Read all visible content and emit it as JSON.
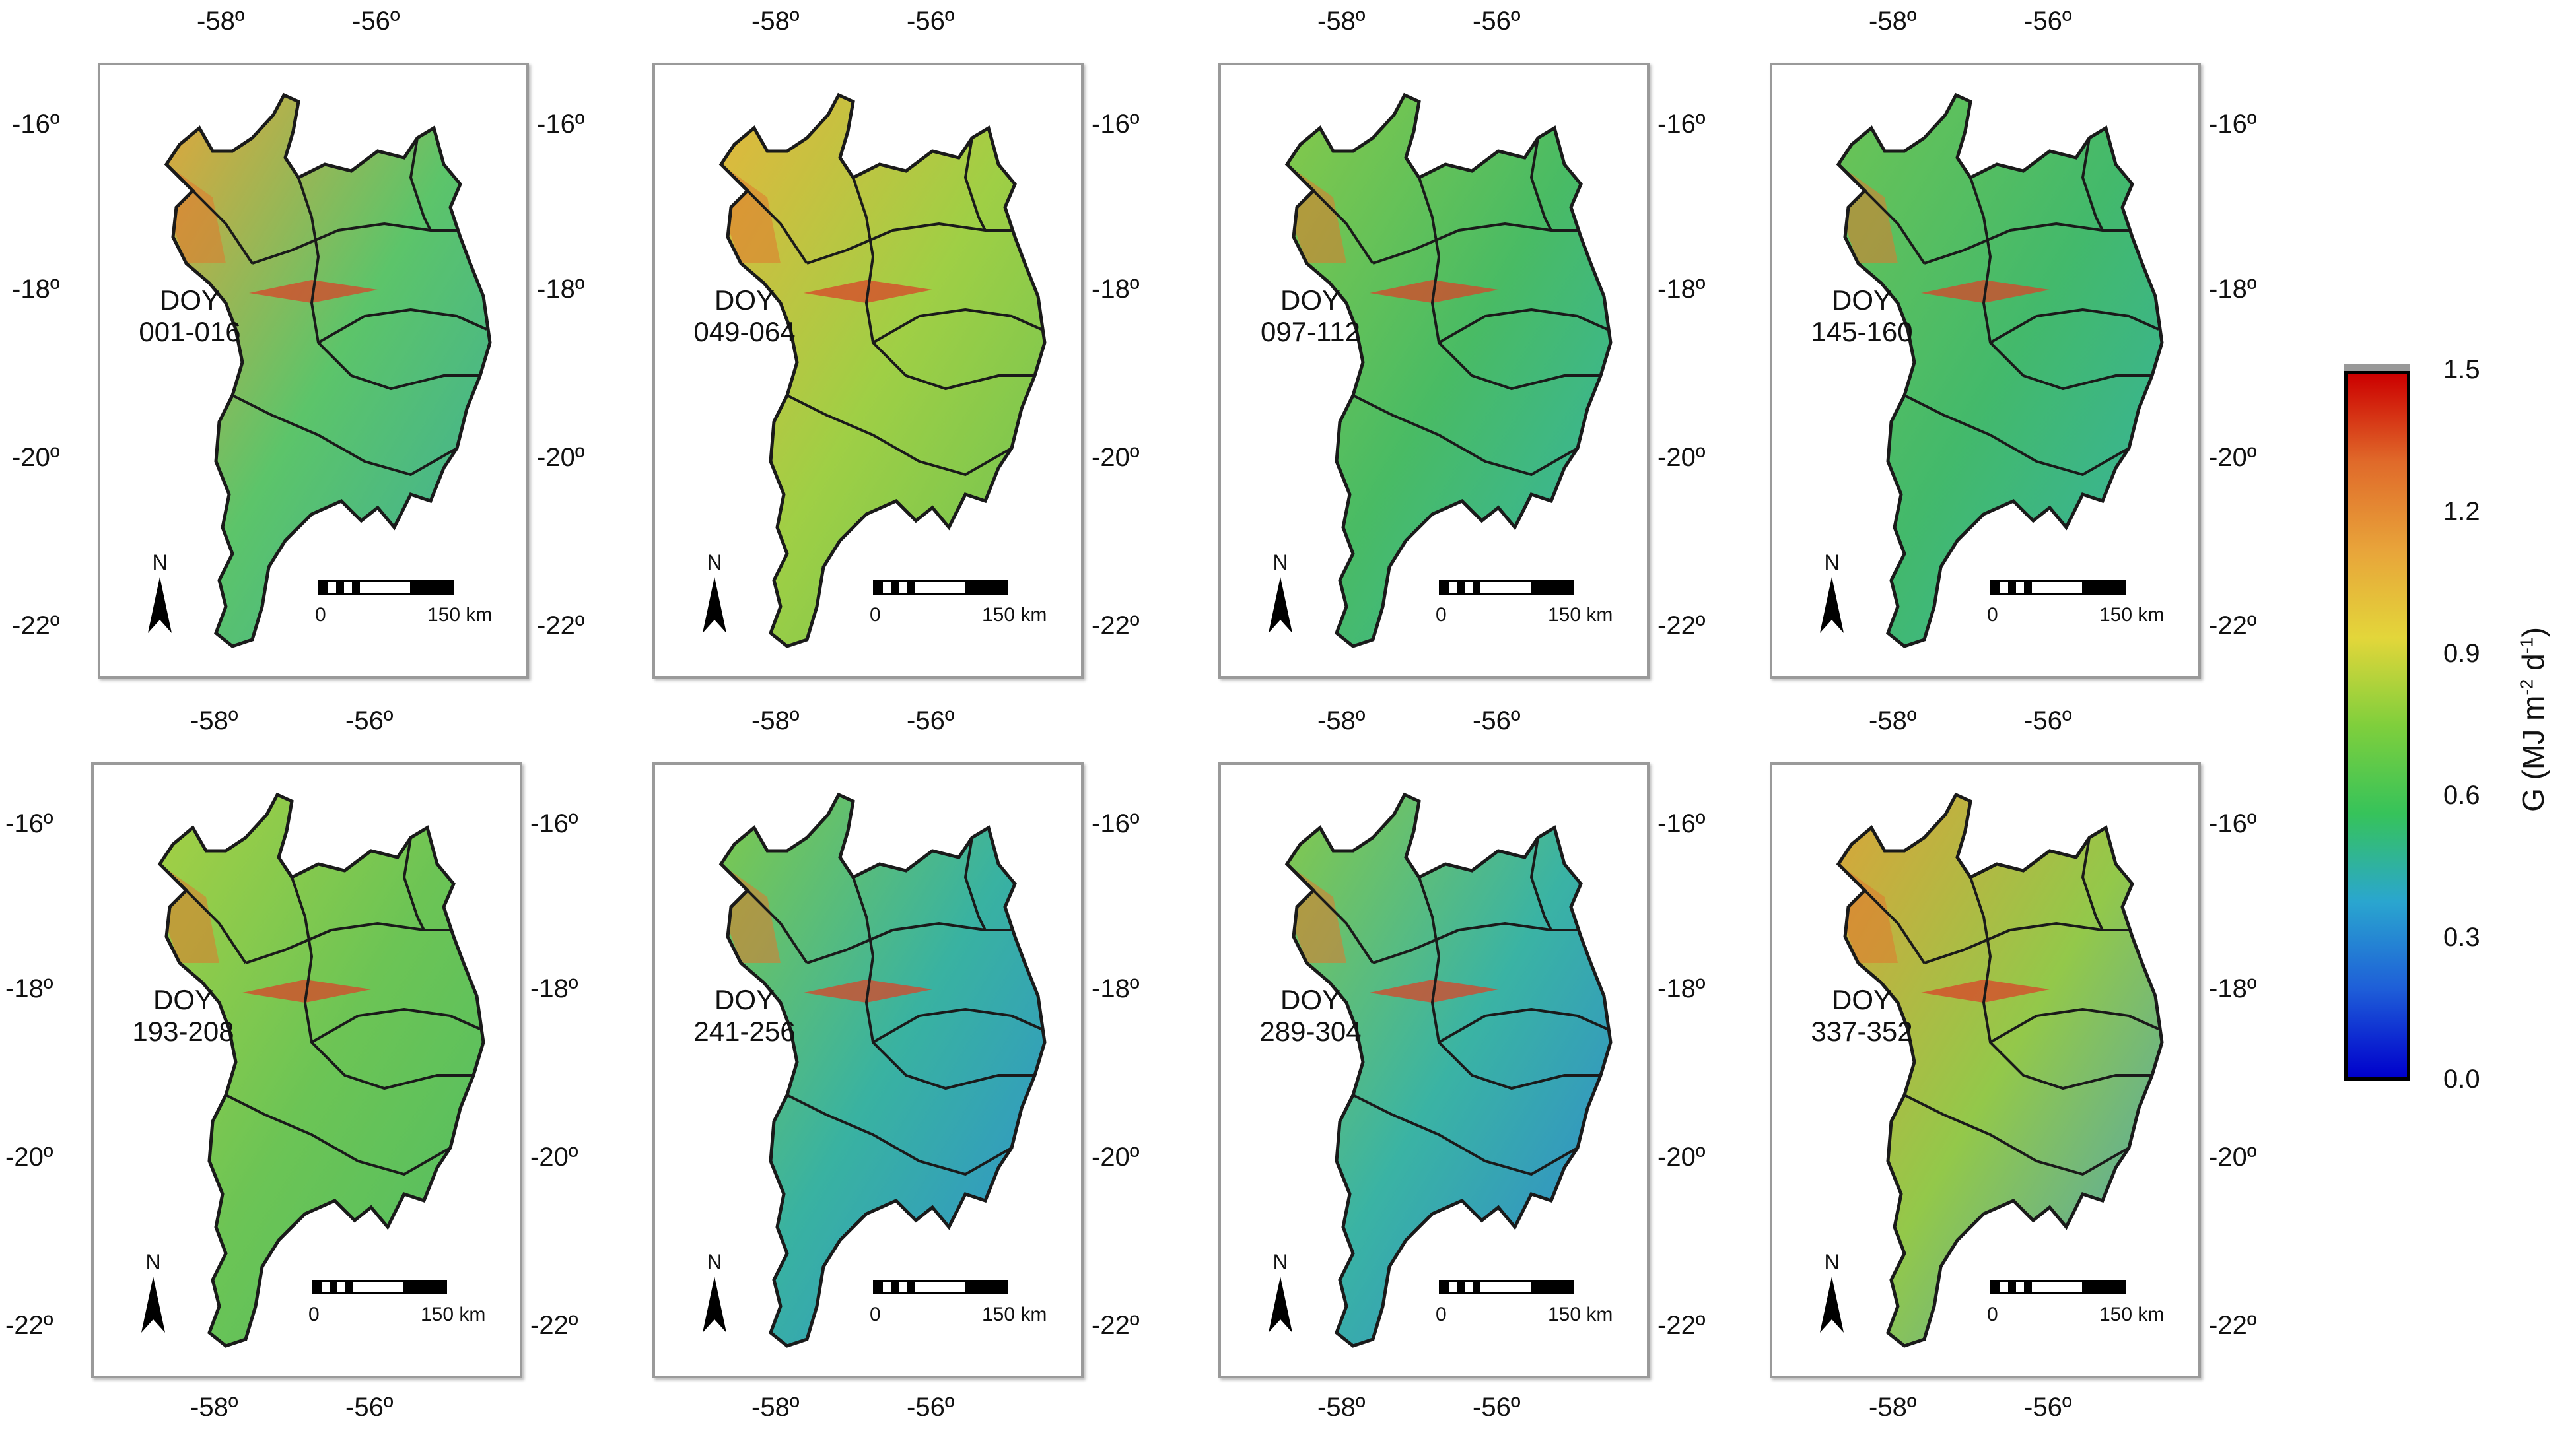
{
  "colorbar": {
    "title": "G (MJ m",
    "title_sup1": "-2",
    "title_mid": " d",
    "title_sup2": "-1",
    "title_end": ")",
    "ticks": [
      "1.5",
      "1.2",
      "0.9",
      "0.6",
      "0.3",
      "0.0"
    ],
    "range": [
      0.0,
      1.5
    ],
    "colors": [
      "#0000cc",
      "#1e5ed8",
      "#2aa6cf",
      "#36c35a",
      "#7fcf3c",
      "#e3d63a",
      "#e8a43a",
      "#e06a2a",
      "#cc0000"
    ]
  },
  "panels": [
    {
      "doy": "DOY\n001-016",
      "lon_labels": [
        "-58º",
        "-56º"
      ],
      "lat_labels": [
        "-16º",
        "-18º",
        "-20º",
        "-22º"
      ],
      "tone": [
        "#e2a63c",
        "#5cc46a",
        "#3cae9a"
      ]
    },
    {
      "doy": "DOY\n049-064",
      "lon_labels": [
        "-58º",
        "-56º"
      ],
      "lat_labels": [
        "-16º",
        "-18º",
        "-20º",
        "-22º"
      ],
      "tone": [
        "#e3b73d",
        "#9fcf45",
        "#6ac254"
      ]
    },
    {
      "doy": "DOY\n097-112",
      "lon_labels": [
        "-58º",
        "-56º"
      ],
      "lat_labels": [
        "-16º",
        "-18º",
        "-20º",
        "-22º"
      ],
      "tone": [
        "#86c94a",
        "#49bb64",
        "#33b3a8"
      ]
    },
    {
      "doy": "DOY\n145-160",
      "lon_labels": [
        "-58º",
        "-56º"
      ],
      "lat_labels": [
        "-16º",
        "-18º",
        "-20º",
        "-22º"
      ],
      "tone": [
        "#6cc455",
        "#43b96b",
        "#35b2a3"
      ]
    },
    {
      "doy": "DOY\n193-208",
      "lon_labels": [
        "-58º",
        "-56º"
      ],
      "lat_labels": [
        "-16º",
        "-18º",
        "-20º",
        "-22º"
      ],
      "tone": [
        "#a6d044",
        "#6cc455",
        "#4fbd64"
      ]
    },
    {
      "doy": "DOY\n241-256",
      "lon_labels": [
        "-58º",
        "-56º"
      ],
      "lat_labels": [
        "-16º",
        "-18º",
        "-20º",
        "-22º"
      ],
      "tone": [
        "#7fc94c",
        "#39b2a1",
        "#2e8fd0"
      ]
    },
    {
      "doy": "DOY\n289-304",
      "lon_labels": [
        "-58º",
        "-56º"
      ],
      "lat_labels": [
        "-16º",
        "-18º",
        "-20º",
        "-22º"
      ],
      "tone": [
        "#86c94a",
        "#3ab3a4",
        "#2f86d2"
      ]
    },
    {
      "doy": "DOY\n337-352",
      "lon_labels": [
        "-58º",
        "-56º"
      ],
      "lat_labels": [
        "-16º",
        "-18º",
        "-20º",
        "-22º"
      ],
      "tone": [
        "#d9a53a",
        "#93c84a",
        "#4aa3b8"
      ]
    }
  ],
  "north": "N",
  "scale": {
    "zero": "0",
    "max": "150 km"
  }
}
